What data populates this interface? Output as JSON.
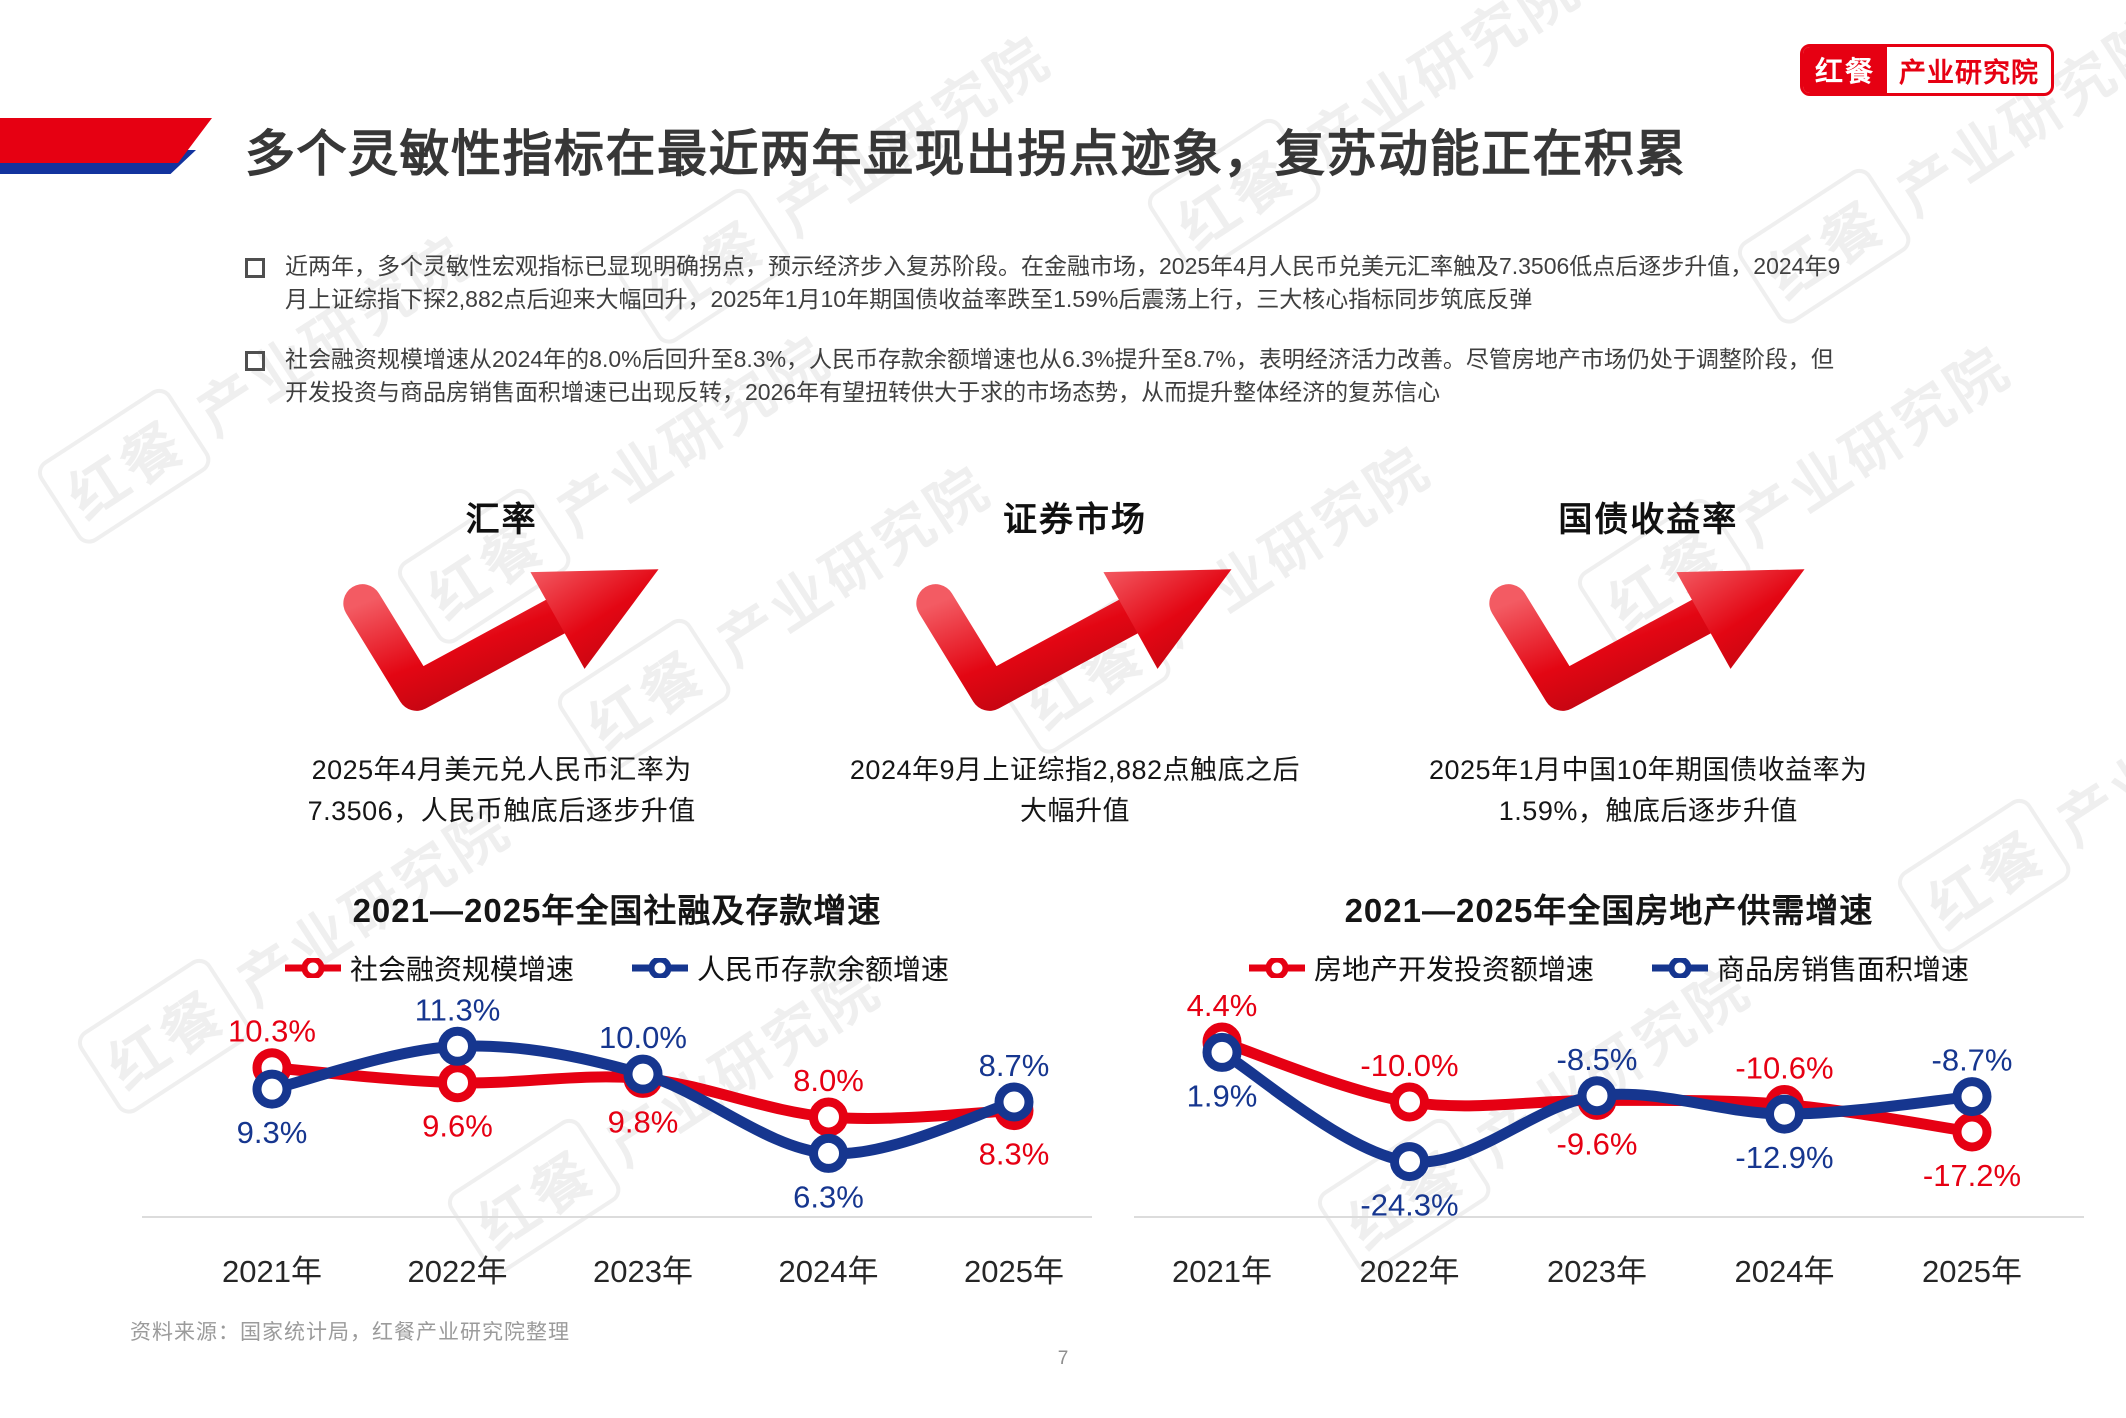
{
  "logo": {
    "brand": "红餐",
    "suffix": "产业研究院"
  },
  "title": "多个灵敏性指标在最近两年显现出拐点迹象，复苏动能正在积累",
  "bullets": [
    "近两年，多个灵敏性宏观指标已显现明确拐点，预示经济步入复苏阶段。在金融市场，2025年4月人民币兑美元汇率触及7.3506低点后逐步升值，2024年9月上证综指下探2,882点后迎来大幅回升，2025年1月10年期国债收益率跌至1.59%后震荡上行，三大核心指标同步筑底反弹",
    "社会融资规模增速从2024年的8.0%后回升至8.3%，人民币存款余额增速也从6.3%提升至8.7%，表明经济活力改善。尽管房地产市场仍处于调整阶段，但开发投资与商品房销售面积增速已出现反转，2026年有望扭转供大于求的市场态势，从而提升整体经济的复苏信心"
  ],
  "indicators": [
    {
      "title": "汇率",
      "caption": "2025年4月美元兑人民币汇率为7.3506，人民币触底后逐步升值"
    },
    {
      "title": "证券市场",
      "caption": "2024年9月上证综指2,882点触底之后大幅升值"
    },
    {
      "title": "国债收益率",
      "caption": "2025年1月中国10年期国债收益率为1.59%，触底后逐步升值"
    }
  ],
  "colors": {
    "brand_red": "#e60012",
    "series_red": "#e60013",
    "series_blue": "#16368f",
    "ribbon_blue": "#12339e",
    "axis_gray": "#dcdcdc",
    "source_gray": "#9b9b9b"
  },
  "chart_data": [
    {
      "type": "line",
      "title": "2021—2025年全国社融及存款增速",
      "categories": [
        "2021年",
        "2022年",
        "2023年",
        "2024年",
        "2025年"
      ],
      "series": [
        {
          "name": "社会融资规模增速",
          "color": "#e60013",
          "values": [
            10.3,
            9.6,
            9.8,
            8.0,
            8.3
          ],
          "label_pos": [
            "above",
            "below",
            "below",
            "above",
            "below"
          ]
        },
        {
          "name": "人民币存款余额增速",
          "color": "#16368f",
          "values": [
            9.3,
            11.3,
            10.0,
            6.3,
            8.7
          ],
          "label_pos": [
            "below",
            "above",
            "above",
            "below",
            "above"
          ]
        }
      ],
      "unit": "%",
      "ylim": [
        5.2,
        12.2
      ],
      "grid": false,
      "legend_position": "top"
    },
    {
      "type": "line",
      "title": "2021—2025年全国房地产供需增速",
      "categories": [
        "2021年",
        "2022年",
        "2023年",
        "2024年",
        "2025年"
      ],
      "series": [
        {
          "name": "房地产开发投资额增速",
          "color": "#e60013",
          "values": [
            4.4,
            -10.0,
            -9.6,
            -10.6,
            -17.2
          ],
          "label_pos": [
            "above",
            "above",
            "below",
            "above",
            "below"
          ]
        },
        {
          "name": "商品房销售面积增速",
          "color": "#16368f",
          "values": [
            1.9,
            -24.3,
            -8.5,
            -12.9,
            -8.7
          ],
          "label_pos": [
            "below",
            "below",
            "above",
            "below",
            "above"
          ]
        }
      ],
      "unit": "%",
      "ylim": [
        -28,
        8
      ],
      "grid": false,
      "legend_position": "top"
    }
  ],
  "source": "资料来源：国家统计局，红餐产业研究院整理",
  "page_number": "7",
  "watermark": {
    "brand": "红餐",
    "suffix": "产业研究院"
  }
}
